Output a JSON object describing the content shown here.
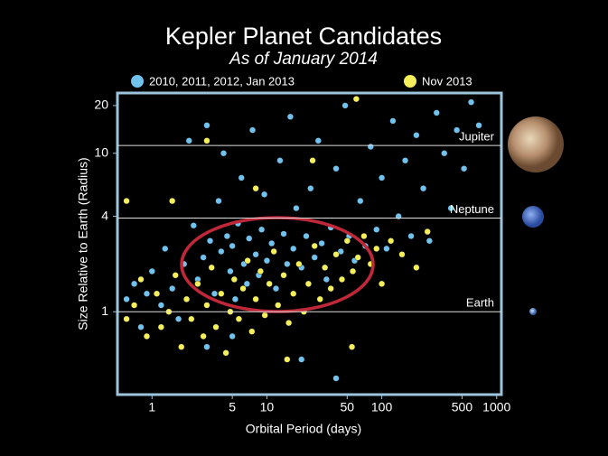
{
  "chart_data": {
    "type": "scatter",
    "title": "Kepler Planet Candidates",
    "subtitle": "As of January 2014",
    "x_label": "Orbital Period (days)",
    "y_label": "Size Relative to Earth (Radius)",
    "x_scale": "log",
    "y_scale": "log",
    "xlim": [
      0.5,
      1100
    ],
    "ylim": [
      0.3,
      24
    ],
    "xticks": [
      1,
      5,
      10,
      50,
      100,
      500,
      1000
    ],
    "yticks": [
      1,
      4,
      10,
      20
    ],
    "reference_lines": [
      {
        "label": "Jupiter",
        "value": 11.2
      },
      {
        "label": "Neptune",
        "value": 3.9
      },
      {
        "label": "Earth",
        "value": 1
      }
    ],
    "series": [
      {
        "name": "2010, 2011, 2012, Jan 2013",
        "color": "#72c2ee",
        "x": [
          0.6,
          0.7,
          0.8,
          0.9,
          1.0,
          1.2,
          1.3,
          1.5,
          1.7,
          1.9,
          2.1,
          2.3,
          2.5,
          2.8,
          3.0,
          3.2,
          3.5,
          3.8,
          4.0,
          4.2,
          4.5,
          4.8,
          5.0,
          5.3,
          5.6,
          6.0,
          6.3,
          6.7,
          7.0,
          7.5,
          8.0,
          8.5,
          9.0,
          9.5,
          10,
          11,
          12,
          13,
          14,
          15,
          16,
          17,
          18,
          20,
          22,
          24,
          26,
          28,
          30,
          33,
          36,
          40,
          44,
          48,
          52,
          58,
          65,
          72,
          80,
          90,
          100,
          110,
          125,
          140,
          160,
          180,
          200,
          230,
          260,
          300,
          350,
          400,
          450,
          520,
          600,
          700,
          3,
          5,
          20,
          40
        ],
        "values": [
          1.2,
          1.5,
          0.8,
          1.3,
          1.8,
          1.1,
          2.5,
          1.4,
          0.9,
          2.0,
          12,
          3.5,
          1.6,
          2.2,
          15,
          2.8,
          1.3,
          5,
          2.4,
          10,
          3.0,
          1.8,
          2.6,
          1.2,
          3.6,
          7,
          2.0,
          1.5,
          2.9,
          14,
          2.3,
          1.7,
          3.3,
          5.5,
          2.1,
          2.7,
          1.4,
          9,
          3.1,
          2.0,
          17,
          2.5,
          4.5,
          1.9,
          3.0,
          6,
          2.2,
          12,
          2.7,
          1.6,
          3.4,
          8,
          2.4,
          20,
          3.0,
          2.1,
          5,
          2.6,
          11,
          3.3,
          7,
          2.5,
          16,
          4,
          9,
          3,
          13,
          6,
          2.8,
          18,
          10,
          4.5,
          14,
          8,
          21,
          15,
          0.6,
          0.7,
          0.5,
          0.38
        ]
      },
      {
        "name": "Nov 2013",
        "color": "#f4ef5a",
        "x": [
          0.6,
          0.7,
          0.8,
          0.9,
          1.1,
          1.2,
          1.4,
          1.6,
          1.8,
          2.0,
          2.2,
          2.5,
          2.8,
          3.0,
          3.3,
          3.6,
          4.0,
          4.4,
          4.8,
          5.2,
          5.7,
          6.2,
          6.8,
          7.4,
          8.0,
          8.8,
          9.6,
          10.5,
          11.5,
          12.5,
          14,
          15.5,
          17,
          19,
          21,
          23,
          26,
          29,
          32,
          36,
          40,
          45,
          50,
          56,
          62,
          70,
          80,
          90,
          100,
          120,
          150,
          200,
          1.5,
          0.6,
          3,
          8,
          25,
          60,
          15,
          55,
          250
        ],
        "values": [
          0.9,
          1.1,
          1.6,
          0.7,
          1.3,
          0.8,
          1.0,
          1.7,
          0.6,
          1.2,
          0.9,
          1.5,
          0.7,
          1.1,
          1.9,
          0.8,
          1.3,
          0.55,
          1.0,
          1.6,
          0.9,
          1.4,
          2.1,
          0.75,
          1.2,
          1.8,
          0.95,
          1.5,
          2.4,
          1.1,
          1.7,
          0.85,
          1.3,
          2.0,
          1.0,
          1.5,
          2.6,
          1.2,
          1.9,
          1.4,
          2.3,
          1.6,
          2.8,
          1.8,
          2.2,
          3.0,
          2.0,
          2.5,
          1.5,
          2.8,
          2.3,
          1.9,
          5,
          5,
          12,
          6,
          9,
          22,
          0.5,
          0.6,
          3.2
        ]
      }
    ]
  }
}
